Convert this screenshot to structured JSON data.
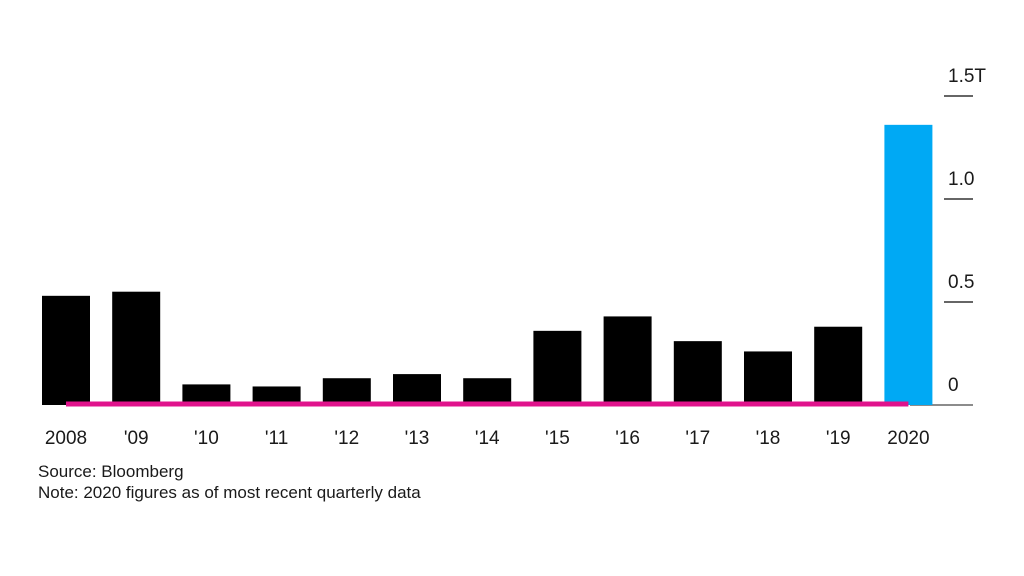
{
  "chart_data": {
    "type": "bar",
    "categories": [
      "2008",
      "'09",
      "'10",
      "'11",
      "'12",
      "'13",
      "'14",
      "'15",
      "'16",
      "'17",
      "'18",
      "'19",
      "2020"
    ],
    "values": [
      0.53,
      0.55,
      0.1,
      0.09,
      0.13,
      0.15,
      0.13,
      0.36,
      0.43,
      0.31,
      0.26,
      0.38,
      1.36
    ],
    "ylim": [
      0,
      1.5
    ],
    "y_ticks": [
      {
        "value": 0,
        "label": "0"
      },
      {
        "value": 0.5,
        "label": "0.5"
      },
      {
        "value": 1.0,
        "label": "1.0"
      },
      {
        "value": 1.5,
        "label": "1.5T"
      }
    ],
    "y_axis_position": "right",
    "highlight_category": "2020",
    "colors": {
      "bar": "#000000",
      "highlight": "#00a9f4",
      "baseline": "#e0138c",
      "gridline": "#666666"
    },
    "grid": false,
    "legend": "none"
  },
  "footer": {
    "source": "Source: Bloomberg",
    "note": "Note: 2020 figures as of most recent quarterly data"
  }
}
